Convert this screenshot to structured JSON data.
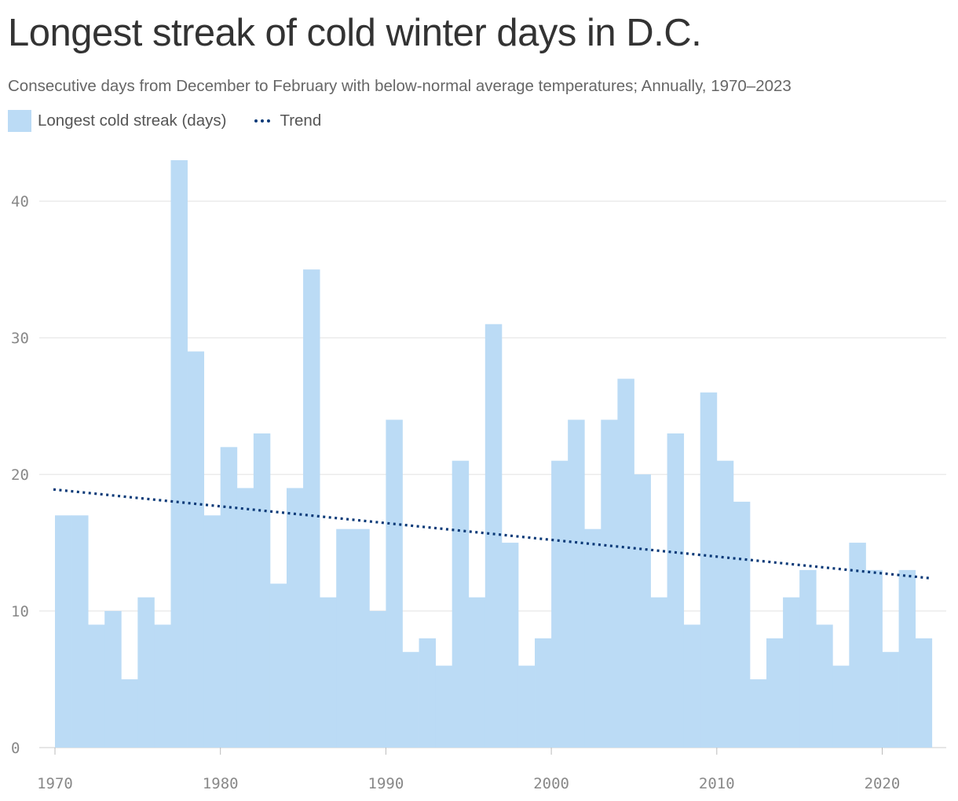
{
  "chart_data": {
    "type": "bar",
    "title": "Longest streak of cold winter days in D.C.",
    "subtitle": "Consecutive days from December to February with below-normal average temperatures; Annually, 1970–2023",
    "legend": {
      "bars": "Longest cold streak (days)",
      "trend": "Trend"
    },
    "x": [
      1970,
      1971,
      1972,
      1973,
      1974,
      1975,
      1976,
      1977,
      1978,
      1979,
      1980,
      1981,
      1982,
      1983,
      1984,
      1985,
      1986,
      1987,
      1988,
      1989,
      1990,
      1991,
      1992,
      1993,
      1994,
      1995,
      1996,
      1997,
      1998,
      1999,
      2000,
      2001,
      2002,
      2003,
      2004,
      2005,
      2006,
      2007,
      2008,
      2009,
      2010,
      2011,
      2012,
      2013,
      2014,
      2015,
      2016,
      2017,
      2018,
      2019,
      2020,
      2021,
      2022
    ],
    "values": [
      17,
      17,
      9,
      10,
      5,
      11,
      9,
      43,
      29,
      17,
      22,
      19,
      23,
      12,
      19,
      35,
      11,
      16,
      16,
      10,
      24,
      7,
      8,
      6,
      21,
      11,
      31,
      15,
      6,
      8,
      21,
      24,
      16,
      24,
      27,
      20,
      11,
      23,
      9,
      26,
      21,
      18,
      5,
      8,
      11,
      13,
      9,
      6,
      15,
      13,
      7,
      13,
      8
    ],
    "trend": {
      "start": [
        1970,
        18.9
      ],
      "end": [
        2023,
        12.4
      ]
    },
    "xlim": [
      1970,
      2023
    ],
    "ylim": [
      0,
      43
    ],
    "xticks": [
      "1970",
      "1980",
      "1990",
      "2000",
      "2010",
      "2020"
    ],
    "yticks": [
      "0",
      "10",
      "20",
      "30",
      "40"
    ],
    "grid": true,
    "legend_position": "top-left",
    "colors": {
      "bar": "#bbdbf5",
      "trend": "#0a3a78",
      "grid": "#e0e0e0",
      "axis_text": "#888888"
    }
  }
}
